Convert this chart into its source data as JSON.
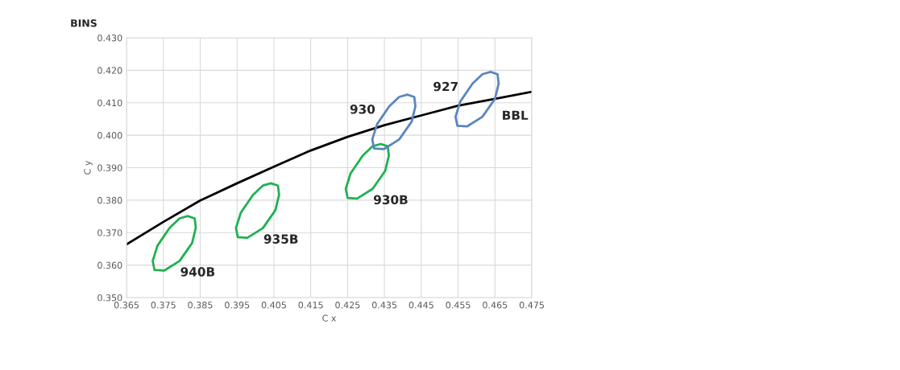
{
  "chart_data": {
    "type": "line",
    "title": "BINS",
    "xlabel": "C x",
    "ylabel": "C y",
    "xlim": [
      0.365,
      0.475
    ],
    "xticks": [
      0.365,
      0.375,
      0.385,
      0.395,
      0.405,
      0.415,
      0.425,
      0.435,
      0.445,
      0.455,
      0.465,
      0.475
    ],
    "ylim": [
      0.35,
      0.43
    ],
    "yticks": [
      {
        "value": 0.35,
        "label": "0.350"
      },
      {
        "value": 0.36,
        "label": "0.360"
      },
      {
        "value": 0.37,
        "label": "0.370"
      },
      {
        "value": 0.38,
        "label": "0.380"
      },
      {
        "value": 0.39,
        "label": "0.390"
      },
      {
        "value": 0.4,
        "label": "0.400"
      },
      {
        "value": 0.41,
        "label": "0.410"
      },
      {
        "value": 0.42,
        "label": "0.420"
      },
      {
        "value": 0.43,
        "label": "0.430"
      }
    ],
    "grid": true,
    "marker": "none",
    "line_style": "solid",
    "series": [
      {
        "name": "BBL",
        "color": "#000000",
        "x": [
          0.365,
          0.375,
          0.385,
          0.395,
          0.405,
          0.415,
          0.425,
          0.435,
          0.445,
          0.455,
          0.465,
          0.475
        ],
        "values": [
          0.3664,
          0.3733,
          0.3799,
          0.3852,
          0.3903,
          0.3953,
          0.3995,
          0.4031,
          0.4061,
          0.4091,
          0.4112,
          0.4134
        ]
      },
      {
        "name": "940B",
        "color": "#1fb151",
        "x": [
          0.3721,
          0.3726,
          0.3752,
          0.3794,
          0.3828,
          0.3838,
          null,
          0.3721,
          0.3734,
          0.3767,
          0.3794,
          0.3816,
          0.3835,
          0.3838
        ],
        "values": [
          0.3613,
          0.3585,
          0.3583,
          0.3613,
          0.3668,
          0.3715,
          null,
          0.3613,
          0.366,
          0.3715,
          0.3744,
          0.3751,
          0.3744,
          0.3715
        ]
      },
      {
        "name": "935B",
        "color": "#1fb151",
        "x": [
          0.3947,
          0.3952,
          0.3978,
          0.402,
          0.4054,
          0.4064,
          null,
          0.3947,
          0.396,
          0.3993,
          0.402,
          0.4042,
          0.4061,
          0.4064
        ],
        "values": [
          0.3714,
          0.3686,
          0.3684,
          0.3714,
          0.3769,
          0.3816,
          null,
          0.3714,
          0.3761,
          0.3816,
          0.3845,
          0.3852,
          0.3845,
          0.3816
        ]
      },
      {
        "name": "930B",
        "color": "#1fb151",
        "x": [
          0.4245,
          0.425,
          0.4276,
          0.4318,
          0.4352,
          0.4362,
          null,
          0.4245,
          0.4258,
          0.4291,
          0.4318,
          0.434,
          0.4359,
          0.4362
        ],
        "values": [
          0.3835,
          0.3807,
          0.3805,
          0.3835,
          0.389,
          0.3937,
          null,
          0.3835,
          0.3882,
          0.3937,
          0.3966,
          0.3973,
          0.3966,
          0.3937
        ]
      },
      {
        "name": "930",
        "color": "#5b86bd",
        "x": [
          0.4317,
          0.4322,
          0.4348,
          0.439,
          0.4424,
          0.4434,
          null,
          0.4317,
          0.433,
          0.4363,
          0.439,
          0.4412,
          0.4431,
          0.4434
        ],
        "values": [
          0.3987,
          0.3959,
          0.3957,
          0.3987,
          0.4042,
          0.4089,
          null,
          0.3987,
          0.4034,
          0.4089,
          0.4118,
          0.4125,
          0.4118,
          0.4089
        ]
      },
      {
        "name": "927",
        "color": "#5b86bd",
        "x": [
          0.4543,
          0.4548,
          0.4574,
          0.4616,
          0.465,
          0.466,
          null,
          0.4543,
          0.4556,
          0.4589,
          0.4616,
          0.4638,
          0.4657,
          0.466
        ],
        "values": [
          0.4057,
          0.4029,
          0.4027,
          0.4057,
          0.4112,
          0.4159,
          null,
          0.4057,
          0.4104,
          0.4159,
          0.4188,
          0.4195,
          0.4188,
          0.4159
        ]
      }
    ]
  }
}
